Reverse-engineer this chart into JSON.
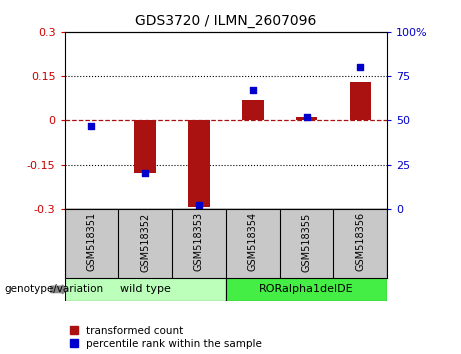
{
  "title": "GDS3720 / ILMN_2607096",
  "samples": [
    "GSM518351",
    "GSM518352",
    "GSM518353",
    "GSM518354",
    "GSM518355",
    "GSM518356"
  ],
  "bar_values": [
    0.0,
    -0.18,
    -0.295,
    0.07,
    0.01,
    0.13
  ],
  "percentile_values": [
    47,
    20,
    2,
    67,
    52,
    80
  ],
  "bar_color": "#aa1111",
  "dot_color": "#0000cc",
  "ylim_left": [
    -0.3,
    0.3
  ],
  "ylim_right": [
    0,
    100
  ],
  "yticks_left": [
    -0.3,
    -0.15,
    0.0,
    0.15,
    0.3
  ],
  "ytick_labels_left": [
    "-0.3",
    "-0.15",
    "0",
    "0.15",
    "0.3"
  ],
  "yticks_right": [
    0,
    25,
    50,
    75,
    100
  ],
  "ytick_labels_right": [
    "0",
    "25",
    "50",
    "75",
    "100%"
  ],
  "dotted_lines": [
    -0.15,
    0.15
  ],
  "groups": [
    {
      "label": "wild type",
      "samples": [
        0,
        1,
        2
      ],
      "color": "#bbffbb"
    },
    {
      "label": "RORalpha1delDE",
      "samples": [
        3,
        4,
        5
      ],
      "color": "#44ee44"
    }
  ],
  "group_label": "genotype/variation",
  "legend_bar_label": "transformed count",
  "legend_dot_label": "percentile rank within the sample",
  "bar_width": 0.4,
  "tick_label_color_left": "#cc0000",
  "tick_label_color_right": "#0000cc",
  "xtick_bg": "#c8c8c8",
  "xtick_divider_color": "#888888"
}
